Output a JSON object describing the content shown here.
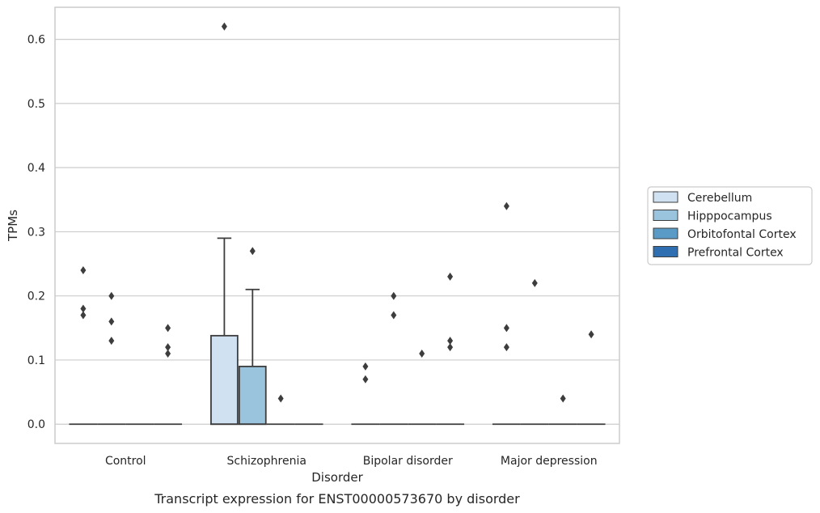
{
  "chart_data": {
    "type": "boxplot",
    "caption": "Transcript expression for ENST00000573670 by disorder",
    "xlabel": "Disorder",
    "ylabel": "TPMs",
    "ylim": [
      -0.03,
      0.65
    ],
    "yticks": [
      0.0,
      0.1,
      0.2,
      0.3,
      0.4,
      0.5,
      0.6
    ],
    "ytick_labels": [
      "0.0",
      "0.1",
      "0.2",
      "0.3",
      "0.4",
      "0.5",
      "0.6"
    ],
    "grid": "horizontal",
    "legend_position": "right",
    "categories": [
      "Control",
      "Schizophrenia",
      "Bipolar disorder",
      "Major depression"
    ],
    "series": [
      {
        "name": "Cerebellum",
        "color": "#d0e1f2",
        "boxes": [
          {
            "q1": 0,
            "median": 0,
            "q3": 0,
            "whislo": 0,
            "whishi": 0,
            "fliers": [
              0.24,
              0.18,
              0.17
            ]
          },
          {
            "q1": 0,
            "median": 0,
            "q3": 0.138,
            "whislo": 0,
            "whishi": 0.29,
            "fliers": [
              0.62
            ]
          },
          {
            "q1": 0,
            "median": 0,
            "q3": 0,
            "whislo": 0,
            "whishi": 0,
            "fliers": [
              0.09,
              0.07
            ]
          },
          {
            "q1": 0,
            "median": 0,
            "q3": 0,
            "whislo": 0,
            "whishi": 0,
            "fliers": [
              0.34,
              0.15,
              0.12
            ]
          }
        ]
      },
      {
        "name": "Hipppocampus",
        "color": "#9ac3dd",
        "boxes": [
          {
            "q1": 0,
            "median": 0,
            "q3": 0,
            "whislo": 0,
            "whishi": 0,
            "fliers": [
              0.2,
              0.16,
              0.13
            ]
          },
          {
            "q1": 0,
            "median": 0,
            "q3": 0.09,
            "whislo": 0,
            "whishi": 0.21,
            "fliers": [
              0.27
            ]
          },
          {
            "q1": 0,
            "median": 0,
            "q3": 0,
            "whislo": 0,
            "whishi": 0,
            "fliers": [
              0.2,
              0.17
            ]
          },
          {
            "q1": 0,
            "median": 0,
            "q3": 0,
            "whislo": 0,
            "whishi": 0,
            "fliers": [
              0.22
            ]
          }
        ]
      },
      {
        "name": "Orbitofontal Cortex",
        "color": "#5a9ac6",
        "boxes": [
          {
            "q1": 0,
            "median": 0,
            "q3": 0,
            "whislo": 0,
            "whishi": 0,
            "fliers": []
          },
          {
            "q1": 0,
            "median": 0,
            "q3": 0,
            "whislo": 0,
            "whishi": 0,
            "fliers": [
              0.04
            ]
          },
          {
            "q1": 0,
            "median": 0,
            "q3": 0,
            "whislo": 0,
            "whishi": 0,
            "fliers": [
              0.11
            ]
          },
          {
            "q1": 0,
            "median": 0,
            "q3": 0,
            "whislo": 0,
            "whishi": 0,
            "fliers": [
              0.04
            ]
          }
        ]
      },
      {
        "name": "Prefrontal Cortex",
        "color": "#2f6eb0",
        "boxes": [
          {
            "q1": 0,
            "median": 0,
            "q3": 0,
            "whislo": 0,
            "whishi": 0,
            "fliers": [
              0.15,
              0.12,
              0.11
            ]
          },
          {
            "q1": 0,
            "median": 0,
            "q3": 0,
            "whislo": 0,
            "whishi": 0,
            "fliers": []
          },
          {
            "q1": 0,
            "median": 0,
            "q3": 0,
            "whislo": 0,
            "whishi": 0,
            "fliers": [
              0.23,
              0.13,
              0.12
            ]
          },
          {
            "q1": 0,
            "median": 0,
            "q3": 0,
            "whislo": 0,
            "whishi": 0,
            "fliers": [
              0.14
            ]
          }
        ]
      }
    ]
  }
}
